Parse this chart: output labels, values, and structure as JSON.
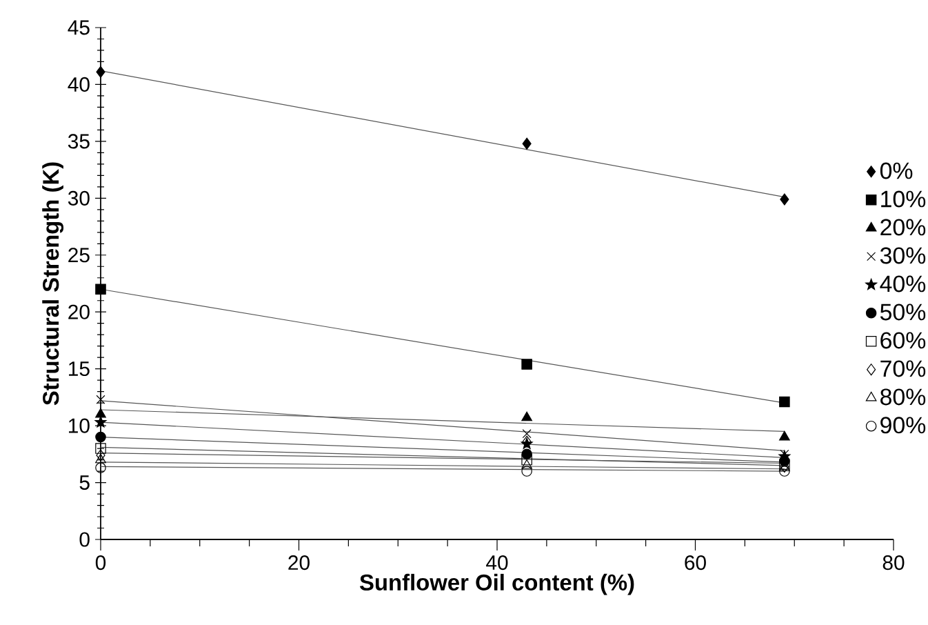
{
  "chart_data": {
    "type": "scatter",
    "xlabel": "Sunflower Oil content (%)",
    "ylabel": "Structural Strength (K)",
    "xlim": [
      0,
      80
    ],
    "xticks": [
      0,
      20,
      40,
      60,
      80
    ],
    "ylim": [
      0,
      45
    ],
    "yticks": [
      0,
      5,
      10,
      15,
      20,
      25,
      30,
      35,
      40,
      45
    ],
    "grid": false,
    "legend": "right",
    "series": [
      {
        "name": "0%",
        "color": "#000000",
        "marker": "diamond",
        "x": [
          0,
          43,
          69
        ],
        "values": [
          41.1,
          34.8,
          29.9
        ]
      },
      {
        "name": "10%",
        "color": "#000000",
        "marker": "square",
        "x": [
          0,
          43,
          69
        ],
        "values": [
          22.0,
          15.4,
          12.1
        ]
      },
      {
        "name": "20%",
        "color": "#000000",
        "marker": "triangle",
        "x": [
          0,
          43,
          69
        ],
        "values": [
          11.0,
          10.7,
          9.0
        ]
      },
      {
        "name": "30%",
        "color": "#000000",
        "marker": "cross",
        "x": [
          0,
          43,
          69
        ],
        "values": [
          12.3,
          9.3,
          7.5
        ]
      },
      {
        "name": "40%",
        "color": "#000000",
        "marker": "star",
        "x": [
          0,
          43,
          69
        ],
        "values": [
          10.3,
          8.4,
          7.3
        ]
      },
      {
        "name": "50%",
        "color": "#000000",
        "marker": "circle",
        "x": [
          0,
          43,
          69
        ],
        "values": [
          9.0,
          7.5,
          6.9
        ]
      },
      {
        "name": "60%",
        "color": "#000000",
        "marker": "square",
        "x": [
          0,
          43,
          69
        ],
        "values": [
          8.0,
          7.0,
          6.6
        ]
      },
      {
        "name": "70%",
        "color": "#000000",
        "marker": "diamond",
        "x": [
          0,
          43,
          69
        ],
        "values": [
          7.4,
          8.6,
          6.4
        ]
      },
      {
        "name": "80%",
        "color": "#000000",
        "marker": "triangle",
        "x": [
          0,
          43,
          69
        ],
        "values": [
          7.0,
          6.5,
          6.3
        ]
      },
      {
        "name": "90%",
        "color": "#000000",
        "marker": "circle",
        "x": [
          0,
          43,
          69
        ],
        "values": [
          6.3,
          6.0,
          6.0
        ]
      },
      {
        "type": "line",
        "color": "#555555",
        "marker": "none",
        "x": [
          0,
          69
        ],
        "values": [
          41.2,
          30.1
        ]
      },
      {
        "type": "line",
        "color": "#555555",
        "marker": "none",
        "x": [
          0,
          69
        ],
        "values": [
          22.0,
          12.0
        ]
      },
      {
        "type": "line",
        "color": "#555555",
        "marker": "none",
        "x": [
          0,
          69
        ],
        "values": [
          11.4,
          9.5
        ]
      },
      {
        "type": "line",
        "color": "#555555",
        "marker": "none",
        "x": [
          0,
          69
        ],
        "values": [
          12.2,
          7.8
        ]
      },
      {
        "type": "line",
        "color": "#555555",
        "marker": "none",
        "x": [
          0,
          69
        ],
        "values": [
          10.3,
          7.2
        ]
      },
      {
        "type": "line",
        "color": "#555555",
        "marker": "none",
        "x": [
          0,
          69
        ],
        "values": [
          9.0,
          6.8
        ]
      },
      {
        "type": "line",
        "color": "#555555",
        "marker": "none",
        "x": [
          0,
          69
        ],
        "values": [
          8.1,
          6.5
        ]
      },
      {
        "type": "line",
        "color": "#555555",
        "marker": "none",
        "x": [
          0,
          69
        ],
        "values": [
          7.6,
          6.7
        ]
      },
      {
        "type": "line",
        "color": "#555555",
        "marker": "none",
        "x": [
          0,
          69
        ],
        "values": [
          6.8,
          6.2
        ]
      },
      {
        "type": "line",
        "color": "#555555",
        "marker": "none",
        "x": [
          0,
          69
        ],
        "values": [
          6.4,
          6.0
        ]
      }
    ]
  }
}
